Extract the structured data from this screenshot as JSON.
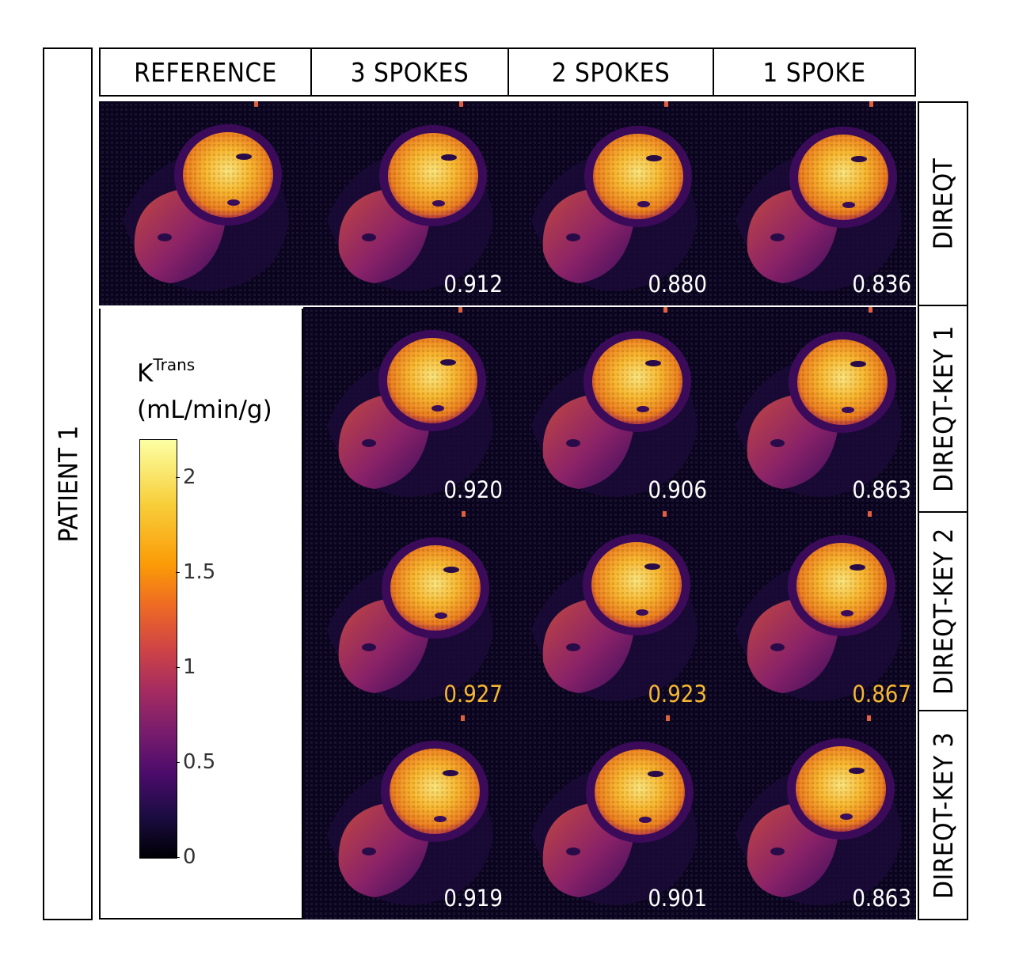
{
  "columns": [
    "REFERENCE",
    "3 SPOKES",
    "2 SPOKES",
    "1 SPOKE"
  ],
  "rows": [
    "DIREQT",
    "DIREQT-KEY 1",
    "DIREQT-KEY 2",
    "DIREQT-KEY 3"
  ],
  "patient_label": "PATIENT 1",
  "scores": [
    [
      "0.912",
      "0.880",
      "0.836"
    ],
    [
      "0.920",
      "0.906",
      "0.863"
    ],
    [
      "0.927",
      "0.923",
      "0.867"
    ],
    [
      "0.919",
      "0.901",
      "0.863"
    ]
  ],
  "best_row_index": 2,
  "colorbar": {
    "title_base": "K",
    "title_sup": "Trans",
    "units": "(mL/min/g)",
    "ticks": [
      "2",
      "1.5",
      "1",
      "0.5",
      "0"
    ],
    "tick_values": [
      2,
      1.5,
      1,
      0.5,
      0
    ],
    "range": [
      0,
      2.2
    ]
  },
  "colors": {
    "best_score": "#f5b731",
    "score": "#ffffff",
    "background": "#0b0420"
  }
}
